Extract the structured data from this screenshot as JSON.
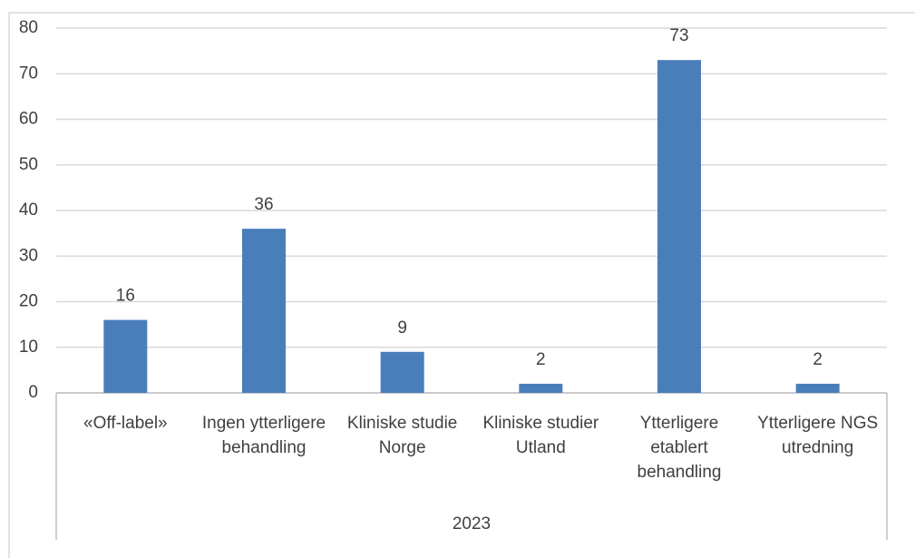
{
  "chart_data": {
    "type": "bar",
    "categories": [
      "«Off-label»",
      "Ingen ytterligere behandling",
      "Kliniske studie Norge",
      "Kliniske studier Utland",
      "Ytterligere etablert behandling",
      "Ytterligere NGS utredning"
    ],
    "values": [
      16,
      36,
      9,
      2,
      73,
      2
    ],
    "color": "#4a7ebb",
    "xlabel": "2023",
    "ylim": [
      0,
      80
    ],
    "yticks": [
      0,
      10,
      20,
      30,
      40,
      50,
      60,
      70,
      80
    ],
    "grid": true
  }
}
